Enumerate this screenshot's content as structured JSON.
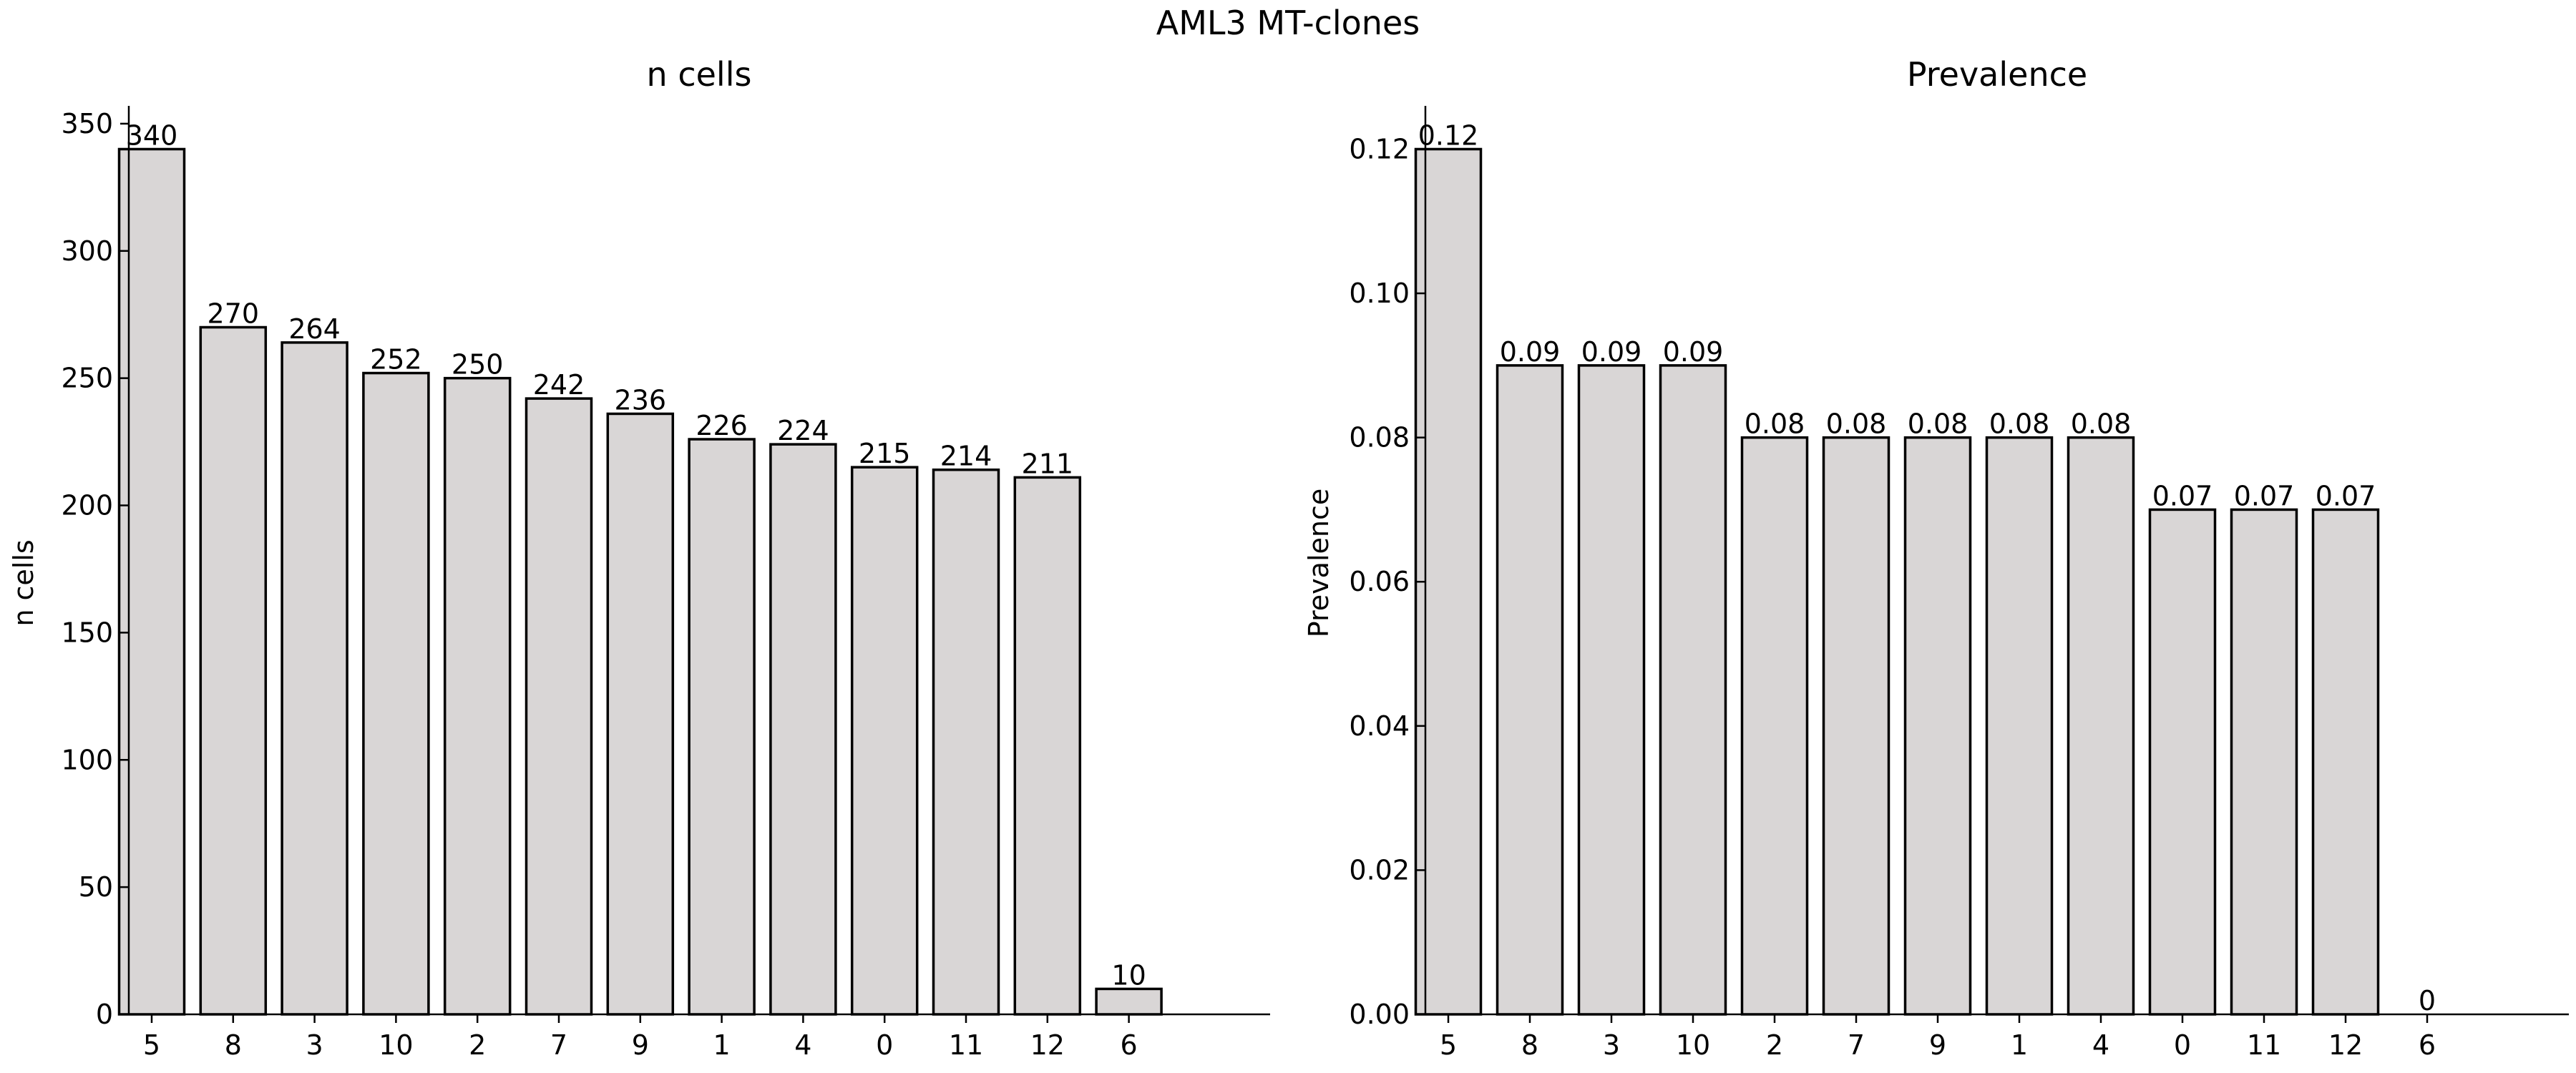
{
  "suptitle": "AML3 MT-clones",
  "chart_data": [
    {
      "type": "bar",
      "title": "n cells",
      "xlabel": "",
      "ylabel": "n cells",
      "categories": [
        "5",
        "8",
        "3",
        "10",
        "2",
        "7",
        "9",
        "1",
        "4",
        "0",
        "11",
        "12",
        "6"
      ],
      "values": [
        340,
        270,
        264,
        252,
        250,
        242,
        236,
        226,
        224,
        215,
        214,
        211,
        10
      ],
      "data_labels": [
        "340",
        "270",
        "264",
        "252",
        "250",
        "242",
        "236",
        "226",
        "224",
        "215",
        "214",
        "211",
        "10"
      ],
      "ylim": [
        0,
        357
      ],
      "yticks": [
        0,
        50,
        100,
        150,
        200,
        250,
        300,
        350
      ],
      "ytick_labels": [
        "0",
        "50",
        "100",
        "150",
        "200",
        "250",
        "300",
        "350"
      ],
      "bar_color": "#d9d6d6",
      "edge_color": "#000000",
      "grid": false,
      "legend": false
    },
    {
      "type": "bar",
      "title": "Prevalence",
      "xlabel": "",
      "ylabel": "Prevalence",
      "categories": [
        "5",
        "8",
        "3",
        "10",
        "2",
        "7",
        "9",
        "1",
        "4",
        "0",
        "11",
        "12",
        "6"
      ],
      "values": [
        0.12,
        0.09,
        0.09,
        0.09,
        0.08,
        0.08,
        0.08,
        0.08,
        0.08,
        0.07,
        0.07,
        0.07,
        0
      ],
      "data_labels": [
        "0.12",
        "0.09",
        "0.09",
        "0.09",
        "0.08",
        "0.08",
        "0.08",
        "0.08",
        "0.08",
        "0.07",
        "0.07",
        "0.07",
        "0"
      ],
      "ylim": [
        0,
        0.126
      ],
      "yticks": [
        0,
        0.02,
        0.04,
        0.06,
        0.08,
        0.1,
        0.12
      ],
      "ytick_labels": [
        "0.00",
        "0.02",
        "0.04",
        "0.06",
        "0.08",
        "0.10",
        "0.12"
      ],
      "bar_color": "#d9d6d6",
      "edge_color": "#000000",
      "grid": false,
      "legend": false
    }
  ]
}
